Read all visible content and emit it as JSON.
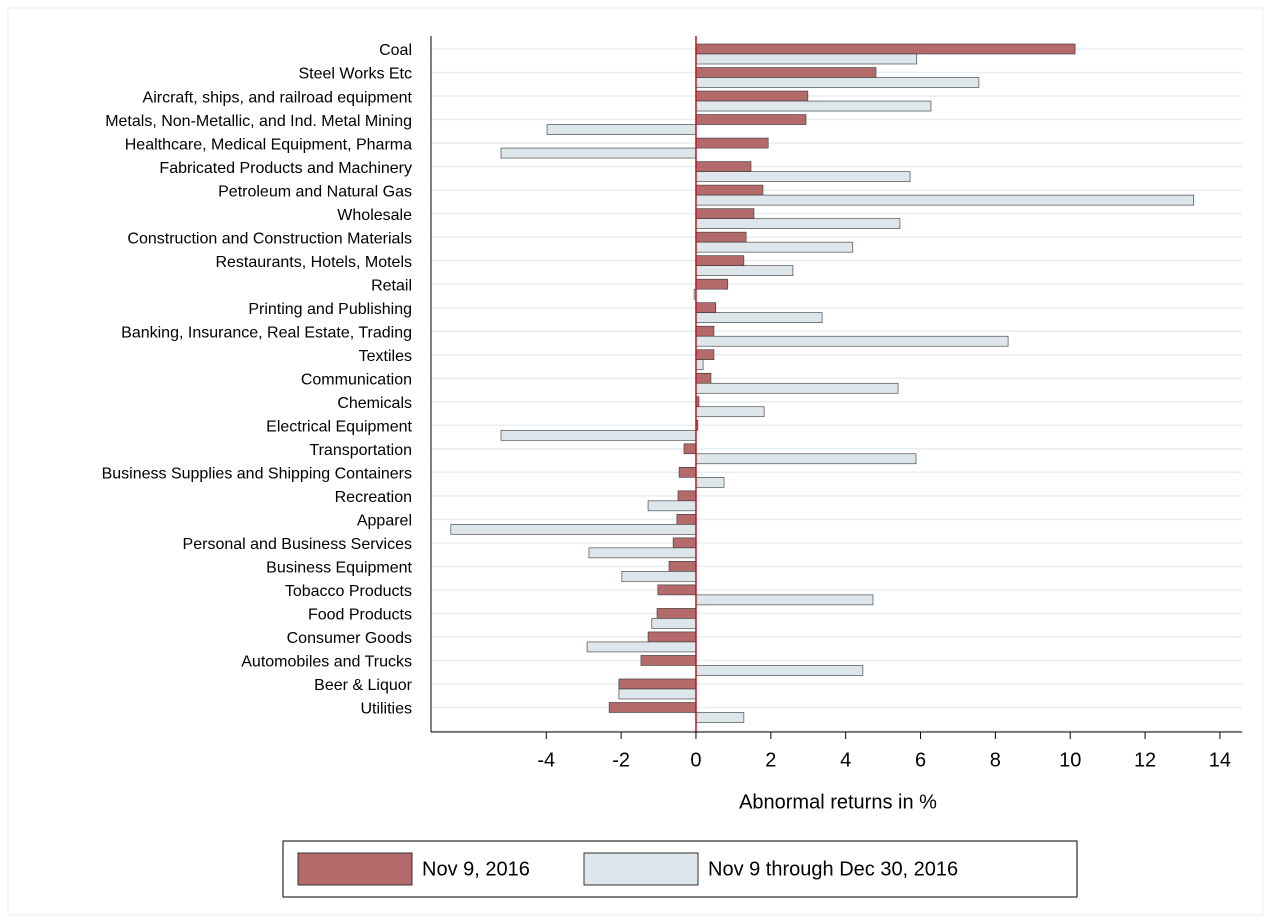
{
  "chart_data": {
    "type": "hbar",
    "categories": [
      "Coal",
      "Steel Works Etc",
      "Aircraft, ships, and railroad equipment",
      "Metals, Non-Metallic, and Ind. Metal Mining",
      "Healthcare, Medical Equipment, Pharma",
      "Fabricated Products and Machinery",
      "Petroleum and Natural Gas",
      "Wholesale",
      "Construction and Construction Materials",
      "Restaurants, Hotels, Motels",
      "Retail",
      "Printing and Publishing",
      "Banking, Insurance, Real Estate, Trading",
      "Textiles",
      "Communication",
      "Chemicals",
      "Electrical Equipment",
      "Transportation",
      "Business Supplies and Shipping Containers",
      "Recreation",
      "Apparel",
      "Personal and Business Services",
      "Business Equipment",
      "Tobacco Products",
      "Food Products",
      "Consumer Goods",
      "Automobiles and Trucks",
      "Beer & Liquor",
      "Utilities"
    ],
    "series": [
      {
        "name": "Nov 9, 2016",
        "color": "#b46a6b",
        "values": [
          10.13,
          4.81,
          2.99,
          2.94,
          1.93,
          1.47,
          1.79,
          1.55,
          1.34,
          1.28,
          0.85,
          0.53,
          0.48,
          0.48,
          0.4,
          0.08,
          0.05,
          -0.32,
          -0.45,
          -0.48,
          -0.51,
          -0.61,
          -0.72,
          -1.02,
          -1.04,
          -1.28,
          -1.47,
          -2.06,
          -2.32
        ]
      },
      {
        "name": "Nov 9 through Dec 30, 2016",
        "color": "#dde6eb",
        "values": [
          5.9,
          7.56,
          6.28,
          -3.98,
          -5.21,
          5.72,
          13.3,
          5.45,
          4.19,
          2.59,
          -0.05,
          3.37,
          8.34,
          0.19,
          5.4,
          1.82,
          -5.21,
          5.88,
          0.75,
          -1.28,
          -6.55,
          -2.86,
          -1.98,
          4.73,
          -1.18,
          -2.91,
          4.46,
          -2.06,
          1.28
        ]
      }
    ],
    "xlabel": "Abnormal returns in %",
    "xlim": [
      -7.08,
      14.59
    ],
    "xticks": [
      -4,
      -2,
      0,
      2,
      4,
      6,
      8,
      10,
      12,
      14
    ],
    "zero_line_color": "#c0141c",
    "grid": true,
    "legend": "bottom"
  }
}
